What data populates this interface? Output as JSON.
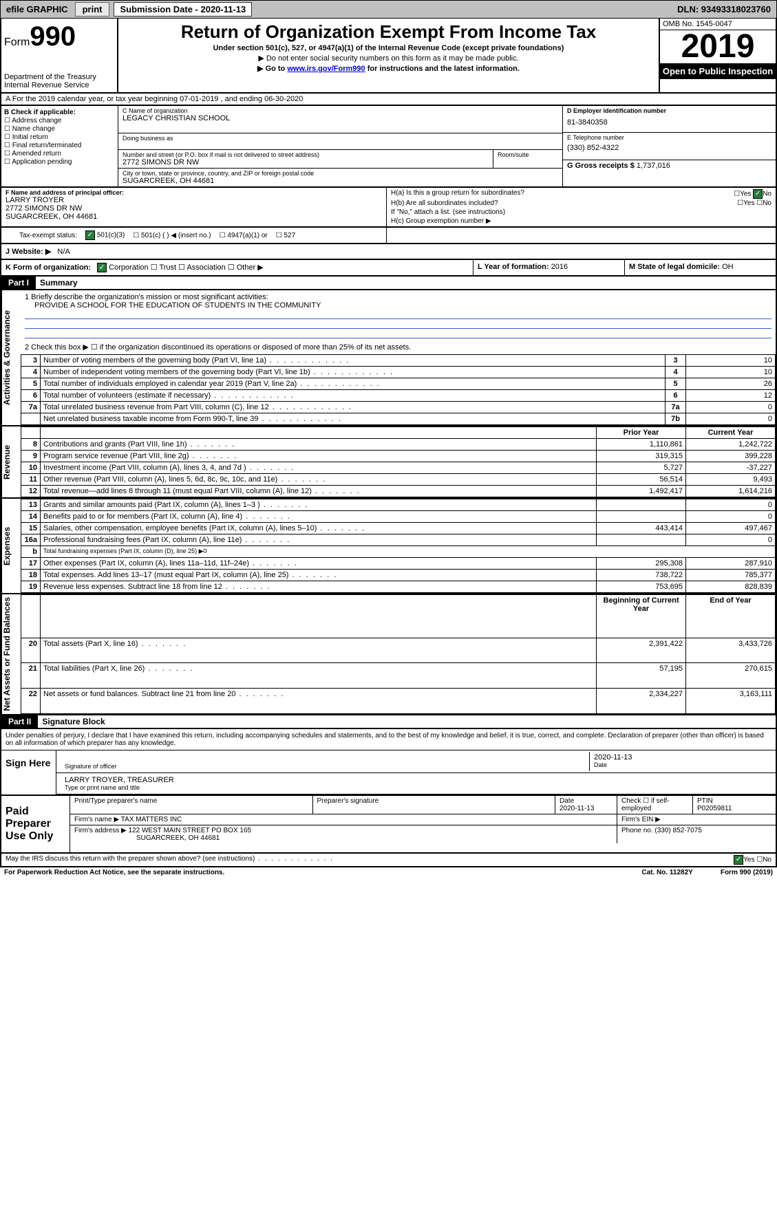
{
  "topbar": {
    "efile": "efile GRAPHIC",
    "print": "print",
    "subm_label": "Submission Date - 2020-11-13",
    "dln": "DLN: 93493318023760"
  },
  "header": {
    "form": "Form",
    "form_num": "990",
    "dept": "Department of the Treasury",
    "irs": "Internal Revenue Service",
    "title": "Return of Organization Exempt From Income Tax",
    "sub1": "Under section 501(c), 527, or 4947(a)(1) of the Internal Revenue Code (except private foundations)",
    "sub2": "▶ Do not enter social security numbers on this form as it may be made public.",
    "sub3a": "▶ Go to ",
    "sub3link": "www.irs.gov/Form990",
    "sub3b": " for instructions and the latest information.",
    "omb": "OMB No. 1545-0047",
    "year": "2019",
    "open": "Open to Public Inspection"
  },
  "rowA": "A For the 2019 calendar year, or tax year beginning 07-01-2019    , and ending 06-30-2020",
  "boxB": {
    "lbl": "B Check if applicable:",
    "o1": "Address change",
    "o2": "Name change",
    "o3": "Initial return",
    "o4": "Final return/terminated",
    "o5": "Amended return",
    "o6": "Application pending"
  },
  "boxC": {
    "name_lbl": "C Name of organization",
    "name": "LEGACY CHRISTIAN SCHOOL",
    "dba_lbl": "Doing business as",
    "addr_lbl": "Number and street (or P.O. box if mail is not delivered to street address)",
    "addr": "2772 SIMONS DR NW",
    "suite_lbl": "Room/suite",
    "city_lbl": "City or town, state or province, country, and ZIP or foreign postal code",
    "city": "SUGARCREEK, OH  44681"
  },
  "boxD": {
    "lbl": "D Employer identification number",
    "val": "81-3840358"
  },
  "boxE": {
    "lbl": "E Telephone number",
    "val": "(330) 852-4322"
  },
  "boxG": {
    "lbl": "G Gross receipts $",
    "val": "1,737,016"
  },
  "boxF": {
    "lbl": "F  Name and address of principal officer:",
    "l1": "LARRY TROYER",
    "l2": "2772 SIMONS DR NW",
    "l3": "SUGARCREEK, OH  44681"
  },
  "boxH": {
    "ha": "H(a)  Is this a group return for subordinates?",
    "hb": "H(b)  Are all subordinates included?",
    "hb2": "If \"No,\" attach a list. (see instructions)",
    "hc": "H(c)  Group exemption number ▶",
    "yes": "Yes",
    "no": "No"
  },
  "taxrow": {
    "lbl": "Tax-exempt status:",
    "o1": "501(c)(3)",
    "o2": "501(c) (  ) ◀ (insert no.)",
    "o3": "4947(a)(1) or",
    "o4": "527"
  },
  "boxJ": {
    "lbl": "J   Website: ▶",
    "val": "N/A"
  },
  "boxK": {
    "lbl": "K Form of organization:",
    "o1": "Corporation",
    "o2": "Trust",
    "o3": "Association",
    "o4": "Other ▶"
  },
  "boxL": {
    "lbl": "L Year of formation:",
    "val": "2016"
  },
  "boxM": {
    "lbl": "M State of legal domicile:",
    "val": "OH"
  },
  "part1": {
    "hdr": "Part I",
    "title": "Summary"
  },
  "summary": {
    "s1_lbl": "1  Briefly describe the organization's mission or most significant activities:",
    "s1_val": "PROVIDE A SCHOOL FOR THE EDUCATION OF STUDENTS IN THE COMMUNITY",
    "s2": "2   Check this box ▶ ☐  if the organization discontinued its operations or disposed of more than 25% of its net assets.",
    "rows": [
      {
        "n": "3",
        "d": "Number of voting members of the governing body (Part VI, line 1a)",
        "b": "3",
        "v": "10"
      },
      {
        "n": "4",
        "d": "Number of independent voting members of the governing body (Part VI, line 1b)",
        "b": "4",
        "v": "10"
      },
      {
        "n": "5",
        "d": "Total number of individuals employed in calendar year 2019 (Part V, line 2a)",
        "b": "5",
        "v": "26"
      },
      {
        "n": "6",
        "d": "Total number of volunteers (estimate if necessary)",
        "b": "6",
        "v": "12"
      },
      {
        "n": "7a",
        "d": "Total unrelated business revenue from Part VIII, column (C), line 12",
        "b": "7a",
        "v": "0"
      },
      {
        "n": "",
        "d": "Net unrelated business taxable income from Form 990-T, line 39",
        "b": "7b",
        "v": "0"
      }
    ],
    "colhdr_prior": "Prior Year",
    "colhdr_curr": "Current Year",
    "rev": [
      {
        "n": "8",
        "d": "Contributions and grants (Part VIII, line 1h)",
        "p": "1,110,861",
        "c": "1,242,722"
      },
      {
        "n": "9",
        "d": "Program service revenue (Part VIII, line 2g)",
        "p": "319,315",
        "c": "399,228"
      },
      {
        "n": "10",
        "d": "Investment income (Part VIII, column (A), lines 3, 4, and 7d )",
        "p": "5,727",
        "c": "-37,227"
      },
      {
        "n": "11",
        "d": "Other revenue (Part VIII, column (A), lines 5, 6d, 8c, 9c, 10c, and 11e)",
        "p": "56,514",
        "c": "9,493"
      },
      {
        "n": "12",
        "d": "Total revenue—add lines 8 through 11 (must equal Part VIII, column (A), line 12)",
        "p": "1,492,417",
        "c": "1,614,216"
      }
    ],
    "exp": [
      {
        "n": "13",
        "d": "Grants and similar amounts paid (Part IX, column (A), lines 1–3 )",
        "p": "",
        "c": "0"
      },
      {
        "n": "14",
        "d": "Benefits paid to or for members (Part IX, column (A), line 4)",
        "p": "",
        "c": "0"
      },
      {
        "n": "15",
        "d": "Salaries, other compensation, employee benefits (Part IX, column (A), lines 5–10)",
        "p": "443,414",
        "c": "497,467"
      },
      {
        "n": "16a",
        "d": "Professional fundraising fees (Part IX, column (A), line 11e)",
        "p": "",
        "c": "0"
      },
      {
        "n": "b",
        "d": "Total fundraising expenses (Part IX, column (D), line 25) ▶0",
        "p": "—",
        "c": "—"
      },
      {
        "n": "17",
        "d": "Other expenses (Part IX, column (A), lines 11a–11d, 11f–24e)",
        "p": "295,308",
        "c": "287,910"
      },
      {
        "n": "18",
        "d": "Total expenses. Add lines 13–17 (must equal Part IX, column (A), line 25)",
        "p": "738,722",
        "c": "785,377"
      },
      {
        "n": "19",
        "d": "Revenue less expenses. Subtract line 18 from line 12",
        "p": "753,695",
        "c": "828,839"
      }
    ],
    "colhdr_beg": "Beginning of Current Year",
    "colhdr_end": "End of Year",
    "net": [
      {
        "n": "20",
        "d": "Total assets (Part X, line 16)",
        "p": "2,391,422",
        "c": "3,433,726"
      },
      {
        "n": "21",
        "d": "Total liabilities (Part X, line 26)",
        "p": "57,195",
        "c": "270,615"
      },
      {
        "n": "22",
        "d": "Net assets or fund balances. Subtract line 21 from line 20",
        "p": "2,334,227",
        "c": "3,163,111"
      }
    ],
    "side_ag": "Activities & Governance",
    "side_rev": "Revenue",
    "side_exp": "Expenses",
    "side_net": "Net Assets or Fund Balances"
  },
  "part2": {
    "hdr": "Part II",
    "title": "Signature Block"
  },
  "sig": {
    "decl": "Under penalties of perjury, I declare that I have examined this return, including accompanying schedules and statements, and to the best of my knowledge and belief, it is true, correct, and complete. Declaration of preparer (other than officer) is based on all information of which preparer has any knowledge.",
    "sign_here": "Sign Here",
    "sig_off": "Signature of officer",
    "date": "2020-11-13",
    "date_lbl": "Date",
    "name": "LARRY TROYER, TREASURER",
    "name_lbl": "Type or print name and title"
  },
  "paid": {
    "lbl": "Paid Preparer Use Only",
    "h1": "Print/Type preparer's name",
    "h2": "Preparer's signature",
    "h3": "Date",
    "h3v": "2020-11-13",
    "h4": "Check ☐ if self-employed",
    "h5": "PTIN",
    "h5v": "P02059811",
    "firm_lbl": "Firm's name    ▶",
    "firm": "TAX MATTERS INC",
    "ein_lbl": "Firm's EIN ▶",
    "addr_lbl": "Firm's address ▶",
    "addr1": "122 WEST MAIN STREET PO BOX 165",
    "addr2": "SUGARCREEK, OH  44681",
    "phone_lbl": "Phone no.",
    "phone": "(330) 852-7075"
  },
  "footer": {
    "discuss": "May the IRS discuss this return with the preparer shown above? (see instructions)",
    "yes": "Yes",
    "no": "No",
    "pra": "For Paperwork Reduction Act Notice, see the separate instructions.",
    "cat": "Cat. No. 11282Y",
    "form": "Form 990 (2019)"
  }
}
